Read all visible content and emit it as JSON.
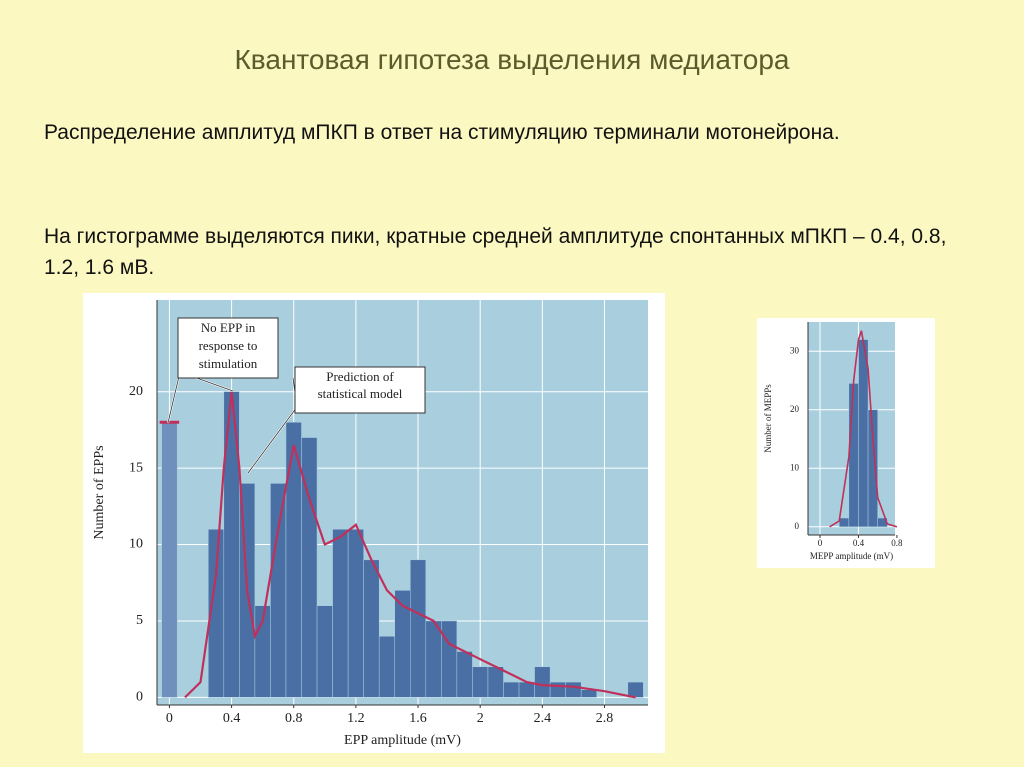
{
  "slide": {
    "title": "Квантовая гипотеза выделения медиатора",
    "paragraphs": [
      "Распределение амплитуд мПКП в ответ на стимуляцию терминали мотонейрона.",
      "На гистограмме выделяются пики, кратные средней амплитуде спонтанных мПКП – 0.4, 0.8, 1.2, 1.6 мВ."
    ]
  },
  "chart_data": [
    {
      "type": "histogram",
      "xlabel": "EPP amplitude (mV)",
      "ylabel": "Number of EPPs",
      "bins": [
        0.25,
        0.35,
        0.45,
        0.55,
        0.65,
        0.75,
        0.85,
        0.95,
        1.05,
        1.15,
        1.25,
        1.35,
        1.45,
        1.55,
        1.65,
        1.75,
        1.85,
        1.95,
        2.05,
        2.15,
        2.25,
        2.35,
        2.45,
        2.55,
        2.65,
        2.75,
        2.85,
        2.95,
        3.05
      ],
      "counts": [
        11,
        20,
        14,
        6,
        14,
        18,
        17,
        6,
        11,
        11,
        9,
        4,
        7,
        9,
        5,
        5,
        3,
        2,
        2,
        1,
        1,
        2,
        1,
        1,
        0.5,
        0,
        0,
        1
      ],
      "color": "#4a6fa5",
      "no_epp": {
        "bins": [
          -0.05,
          0.05
        ],
        "counts": [
          18
        ],
        "color": "#6f8fbd"
      },
      "curve": {
        "color": "#c0305a",
        "x": [
          0.1,
          0.2,
          0.3,
          0.35,
          0.4,
          0.45,
          0.5,
          0.55,
          0.6,
          0.7,
          0.8,
          0.9,
          1.0,
          1.1,
          1.2,
          1.3,
          1.4,
          1.5,
          1.6,
          1.7,
          1.8,
          1.9,
          2.0,
          2.1,
          2.2,
          2.3,
          2.4,
          2.6,
          2.8,
          3.0
        ],
        "values": [
          0,
          1,
          8,
          15,
          20,
          15,
          7,
          4,
          5,
          11,
          16.5,
          13,
          10,
          10.5,
          11.3,
          9,
          7,
          6,
          5.5,
          5,
          3.5,
          3,
          2.5,
          2,
          1.5,
          1,
          0.8,
          0.7,
          0.4,
          0
        ]
      },
      "annotations": [
        {
          "lines": [
            "No EPP in",
            "response to",
            "stimulation"
          ]
        },
        {
          "lines": [
            "Prediction of",
            "statistical model"
          ]
        }
      ],
      "xlim": [
        -0.08,
        3.08
      ],
      "ylim": [
        -0.5,
        26
      ],
      "xticks": [
        0,
        0.4,
        0.8,
        1.2,
        1.6,
        2.0,
        2.4,
        2.8
      ],
      "yticks": [
        0,
        5,
        10,
        15,
        20
      ],
      "grid": true
    },
    {
      "type": "histogram",
      "xlabel": "MEPP amplitude (mV)",
      "ylabel": "Number of MEPPs",
      "bins": [
        0.2,
        0.3,
        0.4,
        0.5,
        0.6,
        0.7
      ],
      "counts": [
        1.5,
        24.5,
        32,
        20,
        1.5
      ],
      "color": "#4a6fa5",
      "curve": {
        "color": "#c0305a",
        "x": [
          0.1,
          0.2,
          0.3,
          0.35,
          0.4,
          0.43,
          0.5,
          0.55,
          0.6,
          0.7,
          0.8
        ],
        "values": [
          0,
          1,
          12,
          25,
          32,
          33.5,
          27,
          15,
          5,
          0.5,
          0
        ]
      },
      "xlim": [
        -0.125,
        0.78
      ],
      "ylim": [
        -1.4,
        35
      ],
      "xticks": [
        0,
        0.4,
        0.8
      ],
      "yticks": [
        0,
        10,
        20,
        30
      ],
      "grid": true
    }
  ]
}
